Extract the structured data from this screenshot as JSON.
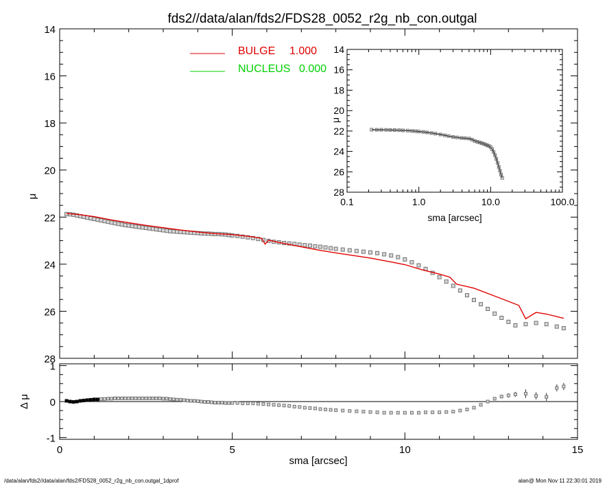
{
  "title": "fds2//data/alan/fds2/FDS28_0052_r2g_nb_con.outgal",
  "footer": {
    "left": "/data/alan/fds2//data/alan/fds2/FDS28_0052_r2g_nb_con.outgal_1dprof",
    "right": "alan@  Mon Nov 11 22:30:01 2019"
  },
  "colors": {
    "bulge": "#e00000",
    "nucleus": "#00d000",
    "data": "#707070",
    "axis": "#000000"
  },
  "legend": [
    {
      "name": "BULGE",
      "value": "1.000",
      "color": "#e00000"
    },
    {
      "name": "NUCLEUS",
      "value": "0.000",
      "color": "#00d000"
    }
  ],
  "chart_data": [
    {
      "id": "main",
      "type": "scatter",
      "xlabel": "sma [arcsec]",
      "ylabel": "μ",
      "xlim": [
        0,
        15
      ],
      "ylim": [
        28,
        14
      ],
      "y_inverted": true,
      "xticks": [
        "0",
        "5",
        "10",
        "15"
      ],
      "yticks": [
        "14",
        "16",
        "18",
        "20",
        "22",
        "24",
        "26",
        "28"
      ],
      "data_points": {
        "sma": [
          0.2,
          0.3,
          0.4,
          0.5,
          0.6,
          0.7,
          0.8,
          0.9,
          1.0,
          1.1,
          1.2,
          1.3,
          1.4,
          1.5,
          1.6,
          1.7,
          1.8,
          1.9,
          2.0,
          2.1,
          2.2,
          2.3,
          2.4,
          2.5,
          2.6,
          2.7,
          2.8,
          2.9,
          3.0,
          3.1,
          3.2,
          3.3,
          3.4,
          3.5,
          3.6,
          3.7,
          3.8,
          3.9,
          4.0,
          4.1,
          4.2,
          4.3,
          4.4,
          4.5,
          4.6,
          4.7,
          4.8,
          4.9,
          5.0,
          5.15,
          5.3,
          5.45,
          5.6,
          5.75,
          5.9,
          6.05,
          6.2,
          6.35,
          6.5,
          6.65,
          6.8,
          6.95,
          7.1,
          7.25,
          7.4,
          7.55,
          7.7,
          7.85,
          8.0,
          8.2,
          8.4,
          8.6,
          8.8,
          9.0,
          9.2,
          9.4,
          9.6,
          9.8,
          10.0,
          10.2,
          10.4,
          10.6,
          10.8,
          11.0,
          11.2,
          11.4,
          11.6,
          11.8,
          12.0,
          12.2,
          12.4,
          12.6,
          12.8,
          13.0,
          13.2,
          13.5,
          13.8,
          14.1,
          14.4,
          14.6
        ],
        "mu": [
          21.87,
          21.88,
          21.9,
          21.93,
          21.96,
          21.99,
          22.02,
          22.05,
          22.08,
          22.11,
          22.14,
          22.17,
          22.2,
          22.23,
          22.26,
          22.29,
          22.31,
          22.34,
          22.36,
          22.38,
          22.4,
          22.42,
          22.44,
          22.46,
          22.48,
          22.5,
          22.52,
          22.54,
          22.56,
          22.58,
          22.6,
          22.61,
          22.62,
          22.63,
          22.64,
          22.65,
          22.66,
          22.67,
          22.68,
          22.69,
          22.7,
          22.7,
          22.71,
          22.72,
          22.72,
          22.73,
          22.74,
          22.76,
          22.78,
          22.8,
          22.83,
          22.86,
          22.89,
          22.93,
          22.97,
          23.01,
          23.05,
          23.07,
          23.1,
          23.12,
          23.14,
          23.17,
          23.19,
          23.21,
          23.24,
          23.26,
          23.29,
          23.32,
          23.35,
          23.38,
          23.41,
          23.44,
          23.47,
          23.5,
          23.53,
          23.58,
          23.63,
          23.7,
          23.8,
          23.92,
          24.05,
          24.2,
          24.37,
          24.55,
          24.74,
          24.92,
          25.12,
          25.32,
          25.52,
          25.7,
          25.9,
          26.1,
          26.28,
          26.45,
          26.6,
          26.55,
          26.5,
          26.55,
          26.65,
          26.72
        ]
      },
      "series": [
        {
          "name": "BULGE",
          "color": "#e00000",
          "x": [
            0.2,
            0.5,
            1.0,
            1.5,
            2.0,
            2.5,
            3.0,
            3.5,
            4.0,
            4.5,
            5.0,
            5.5,
            5.85,
            5.95,
            6.05,
            6.5,
            7.0,
            7.5,
            8.0,
            8.5,
            9.0,
            9.5,
            10.0,
            10.5,
            11.0,
            11.3,
            11.5,
            12.0,
            12.5,
            13.0,
            13.3,
            13.5,
            13.8,
            14.1,
            14.6
          ],
          "y": [
            21.85,
            21.88,
            21.98,
            22.12,
            22.24,
            22.35,
            22.45,
            22.55,
            22.63,
            22.7,
            22.74,
            22.82,
            22.9,
            23.15,
            22.98,
            23.12,
            23.26,
            23.4,
            23.52,
            23.63,
            23.74,
            23.88,
            24.02,
            24.24,
            24.42,
            24.55,
            24.85,
            25.02,
            25.3,
            25.58,
            25.75,
            26.32,
            26.05,
            26.12,
            26.3
          ]
        },
        {
          "name": "NUCLEUS",
          "color": "#00d000",
          "x": [],
          "y": []
        }
      ]
    },
    {
      "id": "residual",
      "type": "scatter",
      "xlabel": "sma [arcsec]",
      "ylabel": "Δ μ",
      "xlim": [
        0,
        15
      ],
      "ylim": [
        -1.05,
        1.05
      ],
      "xticks": [
        "0",
        "5",
        "10",
        "15"
      ],
      "yticks": [
        "-1",
        "0",
        "1"
      ],
      "x": [
        0.2,
        0.3,
        0.4,
        0.5,
        0.6,
        0.7,
        0.8,
        0.9,
        1.0,
        1.1,
        1.2,
        1.3,
        1.4,
        1.5,
        1.6,
        1.7,
        1.8,
        1.9,
        2.0,
        2.1,
        2.2,
        2.3,
        2.4,
        2.5,
        2.6,
        2.7,
        2.8,
        2.9,
        3.0,
        3.1,
        3.2,
        3.3,
        3.4,
        3.5,
        3.6,
        3.7,
        3.8,
        3.9,
        4.0,
        4.1,
        4.2,
        4.3,
        4.4,
        4.5,
        4.6,
        4.7,
        4.8,
        4.9,
        5.0,
        5.15,
        5.3,
        5.45,
        5.6,
        5.75,
        5.9,
        6.05,
        6.2,
        6.35,
        6.5,
        6.65,
        6.8,
        6.95,
        7.1,
        7.25,
        7.4,
        7.55,
        7.7,
        7.85,
        8.0,
        8.2,
        8.4,
        8.6,
        8.8,
        9.0,
        9.2,
        9.4,
        9.6,
        9.8,
        10.0,
        10.2,
        10.4,
        10.6,
        10.8,
        11.0,
        11.2,
        11.4,
        11.6,
        11.8,
        12.0,
        12.2,
        12.4,
        12.6,
        12.8,
        13.0,
        13.2,
        13.5,
        13.8,
        14.1,
        14.4,
        14.6
      ],
      "y": [
        0.02,
        0.0,
        -0.01,
        0.0,
        0.02,
        0.03,
        0.04,
        0.05,
        0.06,
        0.06,
        0.07,
        0.07,
        0.08,
        0.08,
        0.09,
        0.09,
        0.09,
        0.09,
        0.09,
        0.09,
        0.09,
        0.09,
        0.09,
        0.09,
        0.09,
        0.09,
        0.09,
        0.09,
        0.08,
        0.08,
        0.07,
        0.06,
        0.05,
        0.05,
        0.04,
        0.03,
        0.02,
        0.02,
        0.01,
        0.0,
        -0.01,
        -0.01,
        -0.02,
        -0.03,
        -0.03,
        -0.03,
        -0.04,
        -0.04,
        -0.04,
        -0.04,
        -0.05,
        -0.05,
        -0.05,
        -0.06,
        -0.07,
        -0.08,
        -0.09,
        -0.1,
        -0.11,
        -0.12,
        -0.14,
        -0.15,
        -0.17,
        -0.18,
        -0.19,
        -0.21,
        -0.22,
        -0.23,
        -0.24,
        -0.25,
        -0.26,
        -0.27,
        -0.28,
        -0.29,
        -0.3,
        -0.31,
        -0.31,
        -0.31,
        -0.31,
        -0.31,
        -0.31,
        -0.3,
        -0.3,
        -0.3,
        -0.29,
        -0.28,
        -0.25,
        -0.22,
        -0.17,
        -0.09,
        0.0,
        0.08,
        0.14,
        0.17,
        0.2,
        0.22,
        0.16,
        0.13,
        0.38,
        0.42
      ],
      "yerr": [
        0,
        0,
        0,
        0,
        0,
        0,
        0,
        0,
        0,
        0,
        0,
        0,
        0,
        0,
        0,
        0,
        0,
        0,
        0,
        0,
        0,
        0,
        0,
        0,
        0,
        0,
        0,
        0,
        0,
        0,
        0,
        0,
        0,
        0,
        0,
        0,
        0,
        0,
        0,
        0,
        0,
        0,
        0,
        0,
        0,
        0,
        0,
        0,
        0,
        0,
        0,
        0,
        0,
        0,
        0,
        0,
        0,
        0,
        0,
        0,
        0,
        0,
        0,
        0,
        0,
        0,
        0,
        0,
        0,
        0,
        0,
        0,
        0,
        0,
        0,
        0,
        0,
        0,
        0,
        0,
        0,
        0,
        0,
        0,
        0,
        0,
        0,
        0,
        0,
        0,
        0,
        0.04,
        0.05,
        0.06,
        0.07,
        0.12,
        0.1,
        0.11,
        0.1,
        0.1
      ],
      "zero_line": 0
    },
    {
      "id": "inset",
      "type": "scatter",
      "xlabel": "sma [arcsec]",
      "ylabel": "μ",
      "x_scale": "log",
      "xlim": [
        0.1,
        100
      ],
      "ylim": [
        28,
        14
      ],
      "y_inverted": true,
      "xticks": [
        "0.1",
        "1.0",
        "10.0",
        "100.0"
      ],
      "yticks": [
        "14",
        "16",
        "18",
        "20",
        "22",
        "24",
        "26",
        "28"
      ],
      "x": [
        0.22,
        0.26,
        0.3,
        0.35,
        0.4,
        0.46,
        0.53,
        0.6,
        0.7,
        0.8,
        0.9,
        1.0,
        1.15,
        1.3,
        1.5,
        1.7,
        2.0,
        2.3,
        2.6,
        3.0,
        3.4,
        3.9,
        4.4,
        5.0,
        5.5,
        6.0,
        6.5,
        7.0,
        7.5,
        8.0,
        8.5,
        9.0,
        9.5,
        10.0,
        10.5,
        11.0,
        11.5,
        12.0,
        12.5,
        13.0,
        13.5,
        14.0,
        14.5
      ],
      "y": [
        21.87,
        21.88,
        21.88,
        21.89,
        21.9,
        21.91,
        21.92,
        21.94,
        21.96,
        21.99,
        22.02,
        22.05,
        22.09,
        22.14,
        22.2,
        22.26,
        22.34,
        22.42,
        22.5,
        22.58,
        22.63,
        22.68,
        22.71,
        22.74,
        22.84,
        22.97,
        23.05,
        23.12,
        23.19,
        23.26,
        23.33,
        23.41,
        23.47,
        23.58,
        23.78,
        24.05,
        24.37,
        24.74,
        25.12,
        25.52,
        25.9,
        26.28,
        26.6
      ]
    }
  ]
}
